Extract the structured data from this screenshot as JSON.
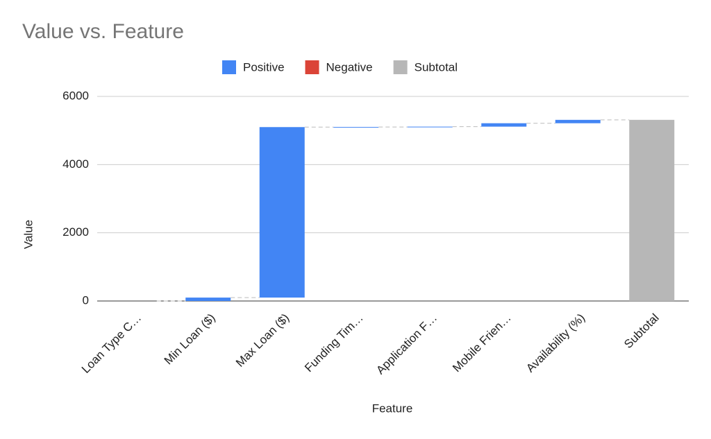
{
  "chart_data": {
    "type": "waterfall",
    "title": "Value vs. Feature",
    "x_label": "Feature",
    "y_label": "Value",
    "categories": [
      "Loan Type C…",
      "Min Loan ($)",
      "Max Loan ($)",
      "Funding Tim…",
      "Application F…",
      "Mobile Frien…",
      "Availability (%)",
      "Subtotal"
    ],
    "values": [
      0,
      100,
      5000,
      3,
      10,
      100,
      99,
      5312
    ],
    "subtotal_index": 7,
    "legend": [
      {
        "name": "Positive",
        "color": "#4285f4"
      },
      {
        "name": "Negative",
        "color": "#db4437"
      },
      {
        "name": "Subtotal",
        "color": "#b7b7b7"
      }
    ],
    "legend_position": "top",
    "ylim": [
      0,
      6000
    ],
    "yticks": [
      0,
      2000,
      4000,
      6000
    ],
    "grid": true
  }
}
